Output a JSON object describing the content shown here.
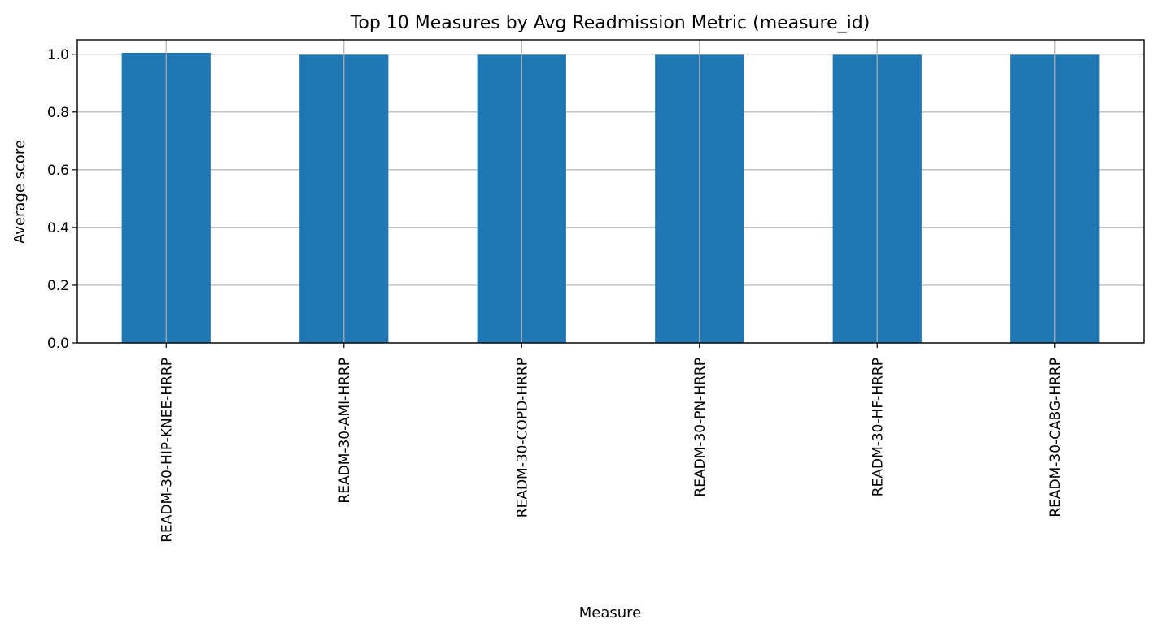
{
  "chart_data": {
    "type": "bar",
    "title": "Top 10 Measures by Avg Readmission Metric (measure_id)",
    "xlabel": "Measure",
    "ylabel": "Average score",
    "categories": [
      "READM-30-HIP-KNEE-HRRP",
      "READM-30-AMI-HRRP",
      "READM-30-COPD-HRRP",
      "READM-30-PN-HRRP",
      "READM-30-HF-HRRP",
      "READM-30-CABG-HRRP"
    ],
    "values": [
      1.005,
      0.998,
      0.998,
      0.998,
      0.998,
      0.998
    ],
    "ylim": [
      0,
      1.05
    ],
    "yticks": [
      "0.0",
      "0.2",
      "0.4",
      "0.6",
      "0.8",
      "1.0"
    ],
    "grid": true,
    "legend": "none",
    "colors": {
      "bar": "#1f77b4",
      "grid": "#b0b0b0",
      "axis": "#000000"
    }
  }
}
